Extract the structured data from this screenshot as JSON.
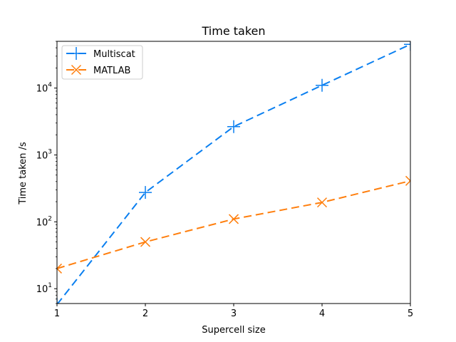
{
  "chart_data": {
    "type": "line",
    "title": "Time taken",
    "xlabel": "Supercell size",
    "ylabel": "Time taken /s",
    "xlim": [
      1,
      5
    ],
    "ylim": [
      6,
      50000
    ],
    "yscale": "log",
    "grid": false,
    "legend_position": "top-left",
    "xticks": [
      1,
      2,
      3,
      4,
      5
    ],
    "yticks": [
      {
        "value": 10,
        "base": "10",
        "exp": "1"
      },
      {
        "value": 100,
        "base": "10",
        "exp": "2"
      },
      {
        "value": 1000,
        "base": "10",
        "exp": "3"
      },
      {
        "value": 10000,
        "base": "10",
        "exp": "4"
      }
    ],
    "series": [
      {
        "name": "Multiscat",
        "color": "#1f77b4",
        "line_color": "#0a7ff0",
        "marker": "plus",
        "linestyle": "dashed",
        "x": [
          1,
          2,
          3,
          4,
          5
        ],
        "y": [
          5.8,
          275,
          2650,
          11000,
          45000
        ]
      },
      {
        "name": "MATLAB",
        "color": "#ff7f0e",
        "line_color": "#ff7f0e",
        "marker": "x",
        "linestyle": "dashed",
        "x": [
          1,
          2,
          3,
          4,
          5
        ],
        "y": [
          20,
          50,
          110,
          195,
          410
        ]
      }
    ]
  }
}
